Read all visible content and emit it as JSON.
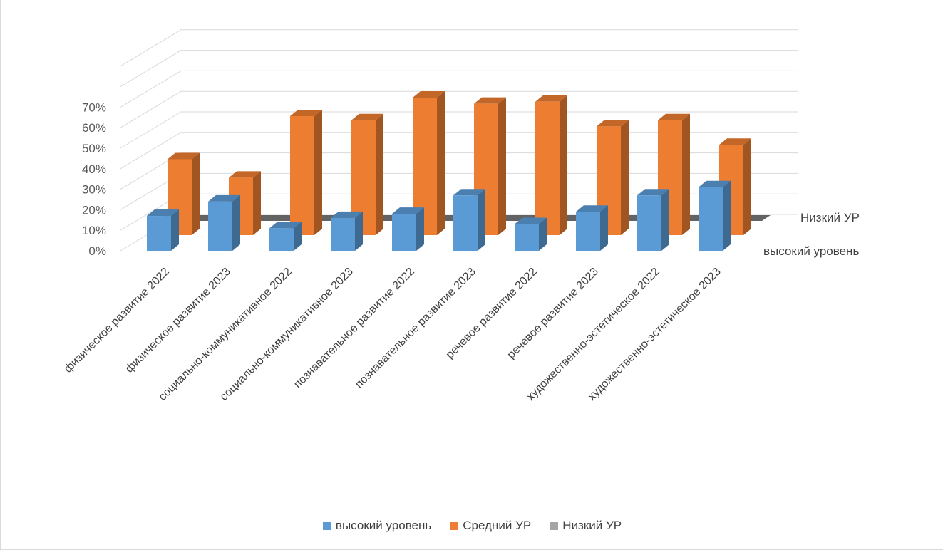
{
  "chart_data": {
    "type": "bar",
    "title": "",
    "xlabel": "",
    "ylabel": "",
    "ylim": [
      0,
      0.7
    ],
    "yticks": [
      "0%",
      "10%",
      "20%",
      "30%",
      "40%",
      "50%",
      "60%",
      "70%"
    ],
    "grid": true,
    "legend": "bottom",
    "depth_labels": [
      "высокий уровень",
      "Низкий УР"
    ],
    "categories": [
      "физическое развитие 2022",
      "физическое развитие 2023",
      "социально-коммуникативное 2022",
      "социально-коммуникативное 2023",
      "познавательное развитие 2022",
      "познавательное развитие 2023",
      "речевое развитие 2022",
      "речевое развитие 2023",
      "художественно-эстетическое 2022",
      "художественно-эстетическое 2023"
    ],
    "series": [
      {
        "name": "высокий уровень",
        "color": "#5b9bd5",
        "values": [
          0.17,
          0.24,
          0.11,
          0.16,
          0.18,
          0.27,
          0.13,
          0.19,
          0.27,
          0.31
        ]
      },
      {
        "name": "Средний УР",
        "color": "#ed7d31",
        "values": [
          0.37,
          0.28,
          0.58,
          0.56,
          0.67,
          0.64,
          0.65,
          0.53,
          0.56,
          0.44
        ]
      },
      {
        "name": "Низкий УР",
        "color": "#a5a5a5",
        "values": [
          0,
          0,
          0,
          0,
          0,
          0,
          0,
          0,
          0,
          0
        ]
      }
    ]
  }
}
